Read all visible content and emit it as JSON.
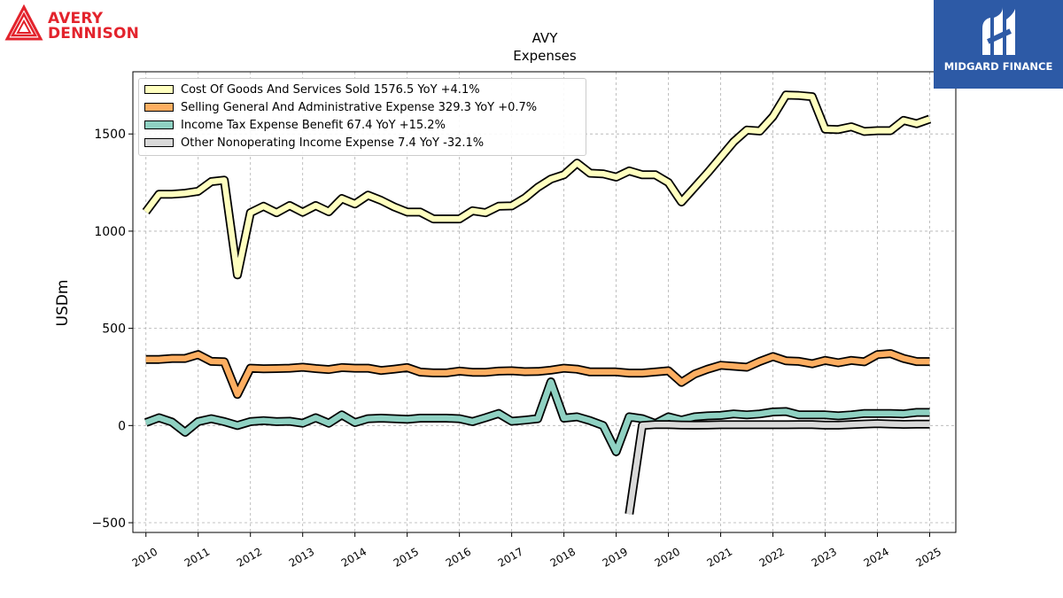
{
  "branding": {
    "left_logo_line1": "AVERY",
    "left_logo_line2": "DENNISON",
    "right_logo_text": "MIDGARD FINANCE",
    "left_logo_color": "#e3232c",
    "right_logo_bg": "#2d5aa6"
  },
  "chart_data": {
    "type": "line",
    "title": "AVY",
    "subtitle": "Expenses",
    "ylabel": "USDm",
    "xlabel": "",
    "xlim": [
      2009.75,
      2025.5
    ],
    "ylim": [
      -550,
      1820
    ],
    "x_ticks": [
      "2010",
      "2011",
      "2012",
      "2013",
      "2014",
      "2015",
      "2016",
      "2017",
      "2018",
      "2019",
      "2020",
      "2021",
      "2022",
      "2023",
      "2024",
      "2025"
    ],
    "y_ticks": [
      "−500",
      "0",
      "500",
      "1000",
      "1500"
    ],
    "grid": true,
    "legend_position": "top-left",
    "series": [
      {
        "name": "Cost Of Goods And Services Sold  1576.5 YoY +4.1%",
        "color": "#ffffbf",
        "x": [
          2010.0,
          2010.25,
          2010.5,
          2010.75,
          2011.0,
          2011.25,
          2011.5,
          2011.75,
          2012.0,
          2012.25,
          2012.5,
          2012.75,
          2013.0,
          2013.25,
          2013.5,
          2013.75,
          2014.0,
          2014.25,
          2014.5,
          2014.75,
          2015.0,
          2015.25,
          2015.5,
          2015.75,
          2016.0,
          2016.25,
          2016.5,
          2016.75,
          2017.0,
          2017.25,
          2017.5,
          2017.75,
          2018.0,
          2018.25,
          2018.5,
          2018.75,
          2019.0,
          2019.25,
          2019.5,
          2019.75,
          2020.0,
          2020.25,
          2020.5,
          2020.75,
          2021.0,
          2021.25,
          2021.5,
          2021.75,
          2022.0,
          2022.25,
          2022.5,
          2022.75,
          2023.0,
          2023.25,
          2023.5,
          2023.75,
          2024.0,
          2024.25,
          2024.5,
          2024.75,
          2025.0
        ],
        "values": [
          1100,
          1190,
          1190,
          1195,
          1205,
          1255,
          1262,
          775,
          1095,
          1128,
          1095,
          1132,
          1097,
          1132,
          1100,
          1168,
          1140,
          1185,
          1158,
          1125,
          1098,
          1098,
          1063,
          1063,
          1063,
          1105,
          1095,
          1128,
          1130,
          1170,
          1225,
          1268,
          1290,
          1350,
          1298,
          1295,
          1278,
          1310,
          1290,
          1290,
          1250,
          1150,
          1225,
          1300,
          1380,
          1460,
          1520,
          1515,
          1590,
          1700,
          1698,
          1692,
          1525,
          1523,
          1537,
          1513,
          1517,
          1517,
          1570,
          1553,
          1576.5
        ]
      },
      {
        "name": "Selling General And Administrative Expense  329.3 YoY +0.7%",
        "color": "#fdae61",
        "x": [
          2010.0,
          2010.25,
          2010.5,
          2010.75,
          2011.0,
          2011.25,
          2011.5,
          2011.75,
          2012.0,
          2012.25,
          2012.5,
          2012.75,
          2013.0,
          2013.25,
          2013.5,
          2013.75,
          2014.0,
          2014.25,
          2014.5,
          2014.75,
          2015.0,
          2015.25,
          2015.5,
          2015.75,
          2016.0,
          2016.25,
          2016.5,
          2016.75,
          2017.0,
          2017.25,
          2017.5,
          2017.75,
          2018.0,
          2018.25,
          2018.5,
          2018.75,
          2019.0,
          2019.25,
          2019.5,
          2019.75,
          2020.0,
          2020.25,
          2020.5,
          2020.75,
          2021.0,
          2021.25,
          2021.5,
          2021.75,
          2022.0,
          2022.25,
          2022.5,
          2022.75,
          2023.0,
          2023.25,
          2023.5,
          2023.75,
          2024.0,
          2024.25,
          2024.5,
          2024.75,
          2025.0
        ],
        "values": [
          340,
          340,
          345,
          345,
          365,
          330,
          328,
          160,
          295,
          292,
          293,
          295,
          300,
          293,
          288,
          298,
          295,
          295,
          283,
          290,
          298,
          275,
          271,
          271,
          280,
          274,
          274,
          280,
          282,
          277,
          278,
          285,
          295,
          290,
          276,
          276,
          276,
          270,
          270,
          276,
          282,
          222,
          265,
          290,
          310,
          305,
          300,
          330,
          355,
          333,
          330,
          318,
          335,
          323,
          335,
          328,
          365,
          370,
          345,
          329.3,
          329.3
        ]
      },
      {
        "name": "Income Tax Expense Benefit  67.4 YoY +15.2%",
        "color": "#8fd1c2",
        "x": [
          2010.0,
          2010.25,
          2010.5,
          2010.75,
          2011.0,
          2011.25,
          2011.5,
          2011.75,
          2012.0,
          2012.25,
          2012.5,
          2012.75,
          2013.0,
          2013.25,
          2013.5,
          2013.75,
          2014.0,
          2014.25,
          2014.5,
          2014.75,
          2015.0,
          2015.25,
          2015.5,
          2015.75,
          2016.0,
          2016.25,
          2016.5,
          2016.75,
          2017.0,
          2017.25,
          2017.5,
          2017.75,
          2018.0,
          2018.25,
          2018.5,
          2018.75,
          2019.0,
          2019.25,
          2019.5,
          2019.75,
          2020.0,
          2020.25,
          2020.5,
          2020.75,
          2021.0,
          2021.25,
          2021.5,
          2021.75,
          2022.0,
          2022.25,
          2022.5,
          2022.75,
          2023.0,
          2023.25,
          2023.5,
          2023.75,
          2024.0,
          2024.25,
          2024.5,
          2024.75,
          2025.0
        ],
        "values": [
          15,
          40,
          18,
          -35,
          20,
          35,
          20,
          0,
          20,
          25,
          20,
          22,
          12,
          40,
          12,
          55,
          15,
          35,
          38,
          35,
          32,
          38,
          38,
          38,
          35,
          20,
          40,
          62,
          22,
          28,
          35,
          225,
          38,
          45,
          25,
          0,
          -135,
          45,
          35,
          10,
          45,
          28,
          45,
          50,
          52,
          60,
          55,
          60,
          70,
          72,
          55,
          55,
          55,
          50,
          55,
          62,
          62,
          62,
          60,
          67.4,
          67.4
        ]
      },
      {
        "name": "Other Nonoperating Income Expense  7.4 YoY -32.1%",
        "color": "#d9d9d9",
        "x": [
          2019.25,
          2019.5,
          2019.75,
          2020.0,
          2020.25,
          2020.5,
          2020.75,
          2021.0,
          2021.25,
          2021.5,
          2021.75,
          2022.0,
          2022.25,
          2022.5,
          2022.75,
          2023.0,
          2023.25,
          2023.5,
          2023.75,
          2024.0,
          2024.25,
          2024.5,
          2024.75,
          2025.0
        ],
        "values": [
          -455,
          0,
          5,
          5,
          3,
          2,
          3,
          4,
          4,
          4,
          4,
          4,
          4,
          5,
          5,
          2,
          2,
          5,
          8,
          10,
          8,
          6,
          7,
          7.4
        ]
      }
    ]
  }
}
